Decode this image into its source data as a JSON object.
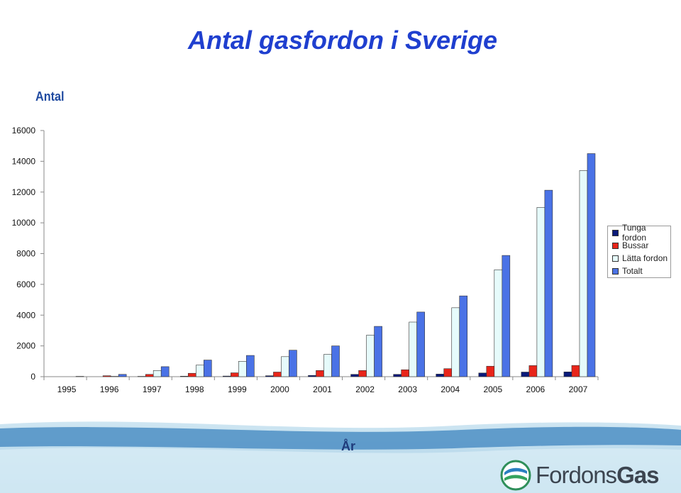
{
  "slide": {
    "title": "Antal gasfordon i Sverige",
    "logo_text_regular": "Fordons",
    "logo_text_bold": "Gas"
  },
  "chart_data": {
    "type": "bar",
    "title": "Antal gasfordon i Sverige",
    "ylabel": "Antal",
    "xlabel": "År",
    "categories": [
      "1995",
      "1996",
      "1997",
      "1998",
      "1999",
      "2000",
      "2001",
      "2002",
      "2003",
      "2004",
      "2005",
      "2006",
      "2007"
    ],
    "ylim": [
      0,
      16000
    ],
    "yticks": [
      0,
      2000,
      4000,
      6000,
      8000,
      10000,
      12000,
      14000,
      16000
    ],
    "grid": false,
    "legend_position": "right",
    "series": [
      {
        "name": "Tunga fordon",
        "color": "#0a1a7a",
        "values": [
          0,
          10,
          20,
          30,
          40,
          60,
          80,
          150,
          150,
          170,
          240,
          300,
          310
        ]
      },
      {
        "name": "Bussar",
        "color": "#e8251a",
        "values": [
          10,
          60,
          150,
          220,
          250,
          300,
          400,
          400,
          450,
          520,
          680,
          720,
          730
        ]
      },
      {
        "name": "Lätta fordon",
        "color": "#e6fbfb",
        "values": [
          0,
          20,
          400,
          750,
          1000,
          1300,
          1450,
          2700,
          3550,
          4480,
          6950,
          11000,
          13400
        ]
      },
      {
        "name": "Totalt",
        "color": "#4a72e6",
        "values": [
          20,
          150,
          650,
          1080,
          1380,
          1720,
          2000,
          3270,
          4200,
          5250,
          7880,
          12120,
          14500
        ]
      }
    ]
  }
}
